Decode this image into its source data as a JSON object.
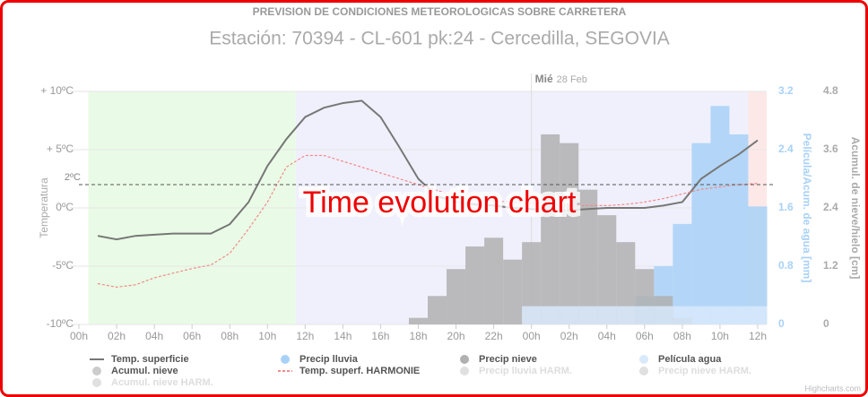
{
  "chart_data": {
    "type": "line",
    "title": "PREVISION DE CONDICIONES METEOROLOGICAS SOBRE CARRETERA",
    "subtitle": "Estación: 70394 - CL-601 pk:24 - Cercedilla, SEGOVIA",
    "overlay_text": "Time evolution chart",
    "day_label": "Mié",
    "date_label": "28 Feb",
    "day_boundary": 24,
    "credit": "Highcharts.com",
    "y_title": "Temperatura",
    "y2_title": "Película/Acum. de agua [mm]",
    "y3_title": "Acumul. de nieve/hielo [cm]",
    "threshold": {
      "value": 2,
      "label": "2ºC"
    },
    "xlim": [
      0,
      36
    ],
    "xticks": [
      {
        "value": 0,
        "label": "00h"
      },
      {
        "value": 2,
        "label": "02h"
      },
      {
        "value": 4,
        "label": "04h"
      },
      {
        "value": 6,
        "label": "06h"
      },
      {
        "value": 8,
        "label": "08h"
      },
      {
        "value": 10,
        "label": "10h"
      },
      {
        "value": 12,
        "label": "12h"
      },
      {
        "value": 14,
        "label": "14h"
      },
      {
        "value": 16,
        "label": "16h"
      },
      {
        "value": 18,
        "label": "18h"
      },
      {
        "value": 20,
        "label": "20h"
      },
      {
        "value": 22,
        "label": "22h"
      },
      {
        "value": 24,
        "label": "00h"
      },
      {
        "value": 26,
        "label": "02h"
      },
      {
        "value": 28,
        "label": "04h"
      },
      {
        "value": 30,
        "label": "06h"
      },
      {
        "value": 32,
        "label": "08h"
      },
      {
        "value": 34,
        "label": "10h"
      },
      {
        "value": 36,
        "label": "12h"
      }
    ],
    "ylim": [
      -10,
      10
    ],
    "yticks": [
      {
        "value": -10,
        "label": "-10ºC"
      },
      {
        "value": -5,
        "label": "-5ºC"
      },
      {
        "value": 0,
        "label": "0ºC"
      },
      {
        "value": 5,
        "label": "+ 5ºC"
      },
      {
        "value": 10,
        "label": "+ 10ºC"
      }
    ],
    "y2lim": [
      0,
      3.2
    ],
    "y2ticks": [
      0,
      0.8,
      1.6,
      2.4,
      3.2
    ],
    "y3lim": [
      0,
      4.8
    ],
    "y3ticks": [
      0,
      1.2,
      2.4,
      3.6,
      4.8
    ],
    "plot_bands": [
      {
        "from": 1,
        "to": 12,
        "color": "#e9fbe6"
      },
      {
        "from": 12,
        "to": 36,
        "color": "#f0f0fc"
      },
      {
        "from": 36,
        "to": 37,
        "color": "#fde8e8"
      }
    ],
    "series": [
      {
        "name": "Temp. superficie",
        "type": "line",
        "color": "#777777",
        "visible": true,
        "x": [
          1,
          2,
          3,
          4,
          5,
          6,
          7,
          8,
          9,
          10,
          11,
          12,
          13,
          14,
          15,
          16,
          17,
          18,
          19,
          20,
          21,
          22,
          23,
          24,
          25,
          26,
          27,
          28,
          29,
          30,
          31,
          32,
          33,
          34,
          35,
          36
        ],
        "values": [
          -2.4,
          -2.7,
          -2.4,
          -2.3,
          -2.2,
          -2.2,
          -2.2,
          -1.4,
          0.5,
          3.6,
          5.9,
          7.8,
          8.6,
          9.0,
          9.2,
          7.8,
          5.2,
          2.5,
          1.0,
          0.5,
          0.3,
          0.2,
          0.0,
          -0.1,
          -0.2,
          -0.2,
          -0.1,
          0.0,
          0.0,
          0.0,
          0.2,
          0.5,
          2.5,
          3.6,
          4.6,
          5.8
        ]
      },
      {
        "name": "Precip lluvia",
        "type": "column",
        "axis": "y2",
        "color": "#a8d1f7",
        "visible": true,
        "x": [
          30,
          31,
          32,
          33,
          34,
          35,
          36
        ],
        "values": [
          0.39,
          0.8,
          1.38,
          2.49,
          3.0,
          2.61,
          1.62
        ]
      },
      {
        "name": "Precip nieve",
        "type": "column",
        "axis": "y2",
        "color": "#b0b0b0",
        "visible": true,
        "x": [
          18,
          19,
          20,
          21,
          22,
          23,
          24,
          25,
          26,
          27,
          28,
          29,
          30,
          31,
          32
        ],
        "values": [
          0.09,
          0.39,
          0.76,
          1.07,
          1.19,
          0.89,
          1.13,
          2.61,
          2.49,
          1.85,
          1.5,
          1.13,
          0.76,
          0.39,
          0.09
        ]
      },
      {
        "name": "Película agua",
        "type": "column",
        "axis": "y2",
        "color": "#d8e9fb",
        "visible": true,
        "x": [
          24,
          25,
          26,
          27,
          28,
          29,
          30,
          31,
          32,
          33,
          34,
          35,
          36
        ],
        "values": [
          0.25,
          0.25,
          0.25,
          0.25,
          0.25,
          0.25,
          0.25,
          0.25,
          0.25,
          0.25,
          0.25,
          0.25,
          0.25
        ]
      },
      {
        "name": "Acumul. nieve",
        "type": "column",
        "color": "#cccccc",
        "visible": true
      },
      {
        "name": "Temp. superf. HARMONIE",
        "type": "line",
        "dash": true,
        "color": "#f28a8a",
        "visible": true,
        "x": [
          1,
          2,
          3,
          4,
          5,
          6,
          7,
          8,
          9,
          10,
          11,
          12,
          13,
          14,
          15,
          16,
          17,
          18,
          19,
          20,
          21,
          22,
          23,
          24,
          25,
          26,
          27,
          28,
          29,
          30,
          31,
          32,
          33,
          34,
          35,
          36
        ],
        "values": [
          -6.5,
          -6.8,
          -6.6,
          -6.0,
          -5.6,
          -5.2,
          -4.9,
          -3.9,
          -1.8,
          0.5,
          3.5,
          4.5,
          4.5,
          4.0,
          3.5,
          3.0,
          2.5,
          2.0,
          1.5,
          1.0,
          0.8,
          0.6,
          0.5,
          0.4,
          0.3,
          0.2,
          0.2,
          0.2,
          0.3,
          0.5,
          0.8,
          1.2,
          1.6,
          1.8,
          2.0,
          2.1
        ]
      },
      {
        "name": "Precip lluvia HARM.",
        "type": "column",
        "color": "#dddddd",
        "visible": false
      },
      {
        "name": "Precip nieve HARM.",
        "type": "column",
        "color": "#dddddd",
        "visible": false
      },
      {
        "name": "Acumul. nieve HARM.",
        "type": "column",
        "color": "#dddddd",
        "visible": false
      }
    ]
  }
}
